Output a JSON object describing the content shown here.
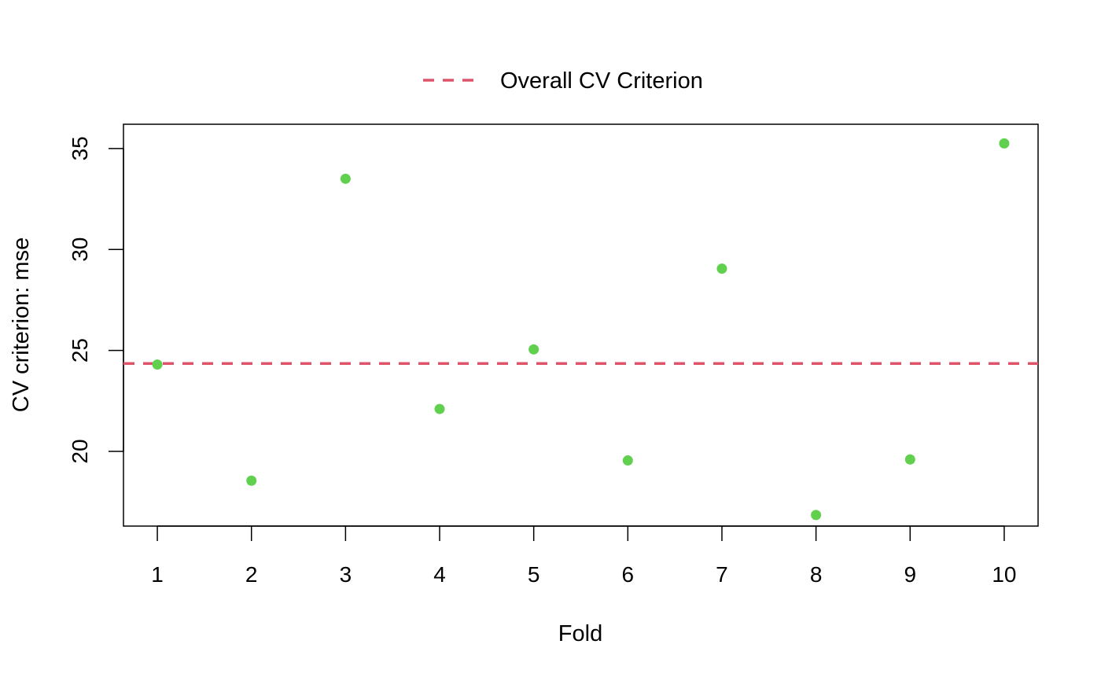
{
  "chart_data": {
    "type": "scatter",
    "title": "",
    "xlabel": "Fold",
    "ylabel": "CV criterion: mse",
    "x": [
      1,
      2,
      3,
      4,
      5,
      6,
      7,
      8,
      9,
      10
    ],
    "y": [
      24.3,
      18.55,
      33.5,
      22.1,
      25.05,
      19.55,
      29.05,
      16.85,
      19.6,
      35.25
    ],
    "xticks": [
      1,
      2,
      3,
      4,
      5,
      6,
      7,
      8,
      9,
      10
    ],
    "yticks": [
      20,
      25,
      30,
      35
    ],
    "xlim": [
      0.64,
      10.36
    ],
    "ylim": [
      16.3,
      36.2
    ],
    "point_color": "#61D04F",
    "reference_line": {
      "label": "Overall CV Criterion",
      "value": 24.35,
      "color": "#DF536B",
      "style": "dashed"
    },
    "legend": {
      "position": "top",
      "entries": [
        "Overall CV Criterion"
      ]
    },
    "grid": false
  }
}
